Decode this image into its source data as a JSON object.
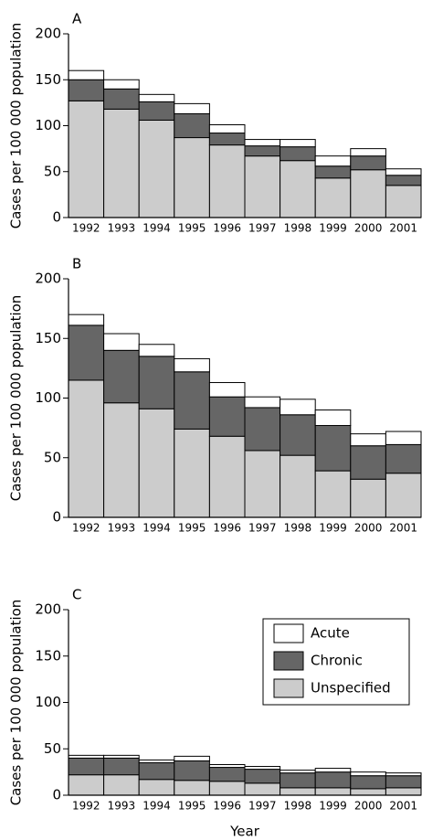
{
  "chart_data": [
    {
      "type": "bar",
      "stacked": true,
      "label": "A",
      "y_label": "Cases per 100 000 population",
      "categories": [
        "1992",
        "1993",
        "1994",
        "1995",
        "1996",
        "1997",
        "1998",
        "1999",
        "2000",
        "2001"
      ],
      "series": [
        {
          "color": "#cccccc",
          "values": [
            127,
            118,
            106,
            87,
            79,
            67,
            62,
            43,
            52,
            35
          ]
        },
        {
          "color": "#666666",
          "values": [
            23,
            22,
            20,
            26,
            13,
            11,
            15,
            13,
            15,
            11
          ]
        },
        {
          "color": "#ffffff",
          "values": [
            10,
            10,
            8,
            11,
            9,
            7,
            8,
            11,
            8,
            7
          ]
        }
      ],
      "ylim": [
        0,
        200
      ],
      "yticks": [
        0,
        50,
        100,
        150,
        200
      ],
      "legend": false
    },
    {
      "type": "bar",
      "stacked": true,
      "label": "B",
      "y_label": "Cases per 100 000 population",
      "categories": [
        "1992",
        "1993",
        "1994",
        "1995",
        "1996",
        "1997",
        "1998",
        "1999",
        "2000",
        "2001"
      ],
      "series": [
        {
          "color": "#cccccc",
          "values": [
            115,
            96,
            91,
            74,
            68,
            56,
            52,
            39,
            32,
            37
          ]
        },
        {
          "color": "#666666",
          "values": [
            46,
            44,
            44,
            48,
            33,
            36,
            34,
            38,
            28,
            24
          ]
        },
        {
          "color": "#ffffff",
          "values": [
            9,
            14,
            10,
            11,
            12,
            9,
            13,
            13,
            10,
            11
          ]
        }
      ],
      "ylim": [
        0,
        200
      ],
      "yticks": [
        0,
        50,
        100,
        150,
        200
      ],
      "legend": false
    },
    {
      "type": "bar",
      "stacked": true,
      "label": "C",
      "y_label": "Cases per 100 000 population",
      "x_label": "Year",
      "categories": [
        "1992",
        "1993",
        "1994",
        "1995",
        "1996",
        "1997",
        "1998",
        "1999",
        "2000",
        "2001"
      ],
      "series": [
        {
          "name": "Unspecified",
          "color": "#cccccc",
          "values": [
            22,
            22,
            17,
            16,
            15,
            13,
            8,
            8,
            7,
            8
          ]
        },
        {
          "name": "Chronic",
          "color": "#666666",
          "values": [
            18,
            18,
            18,
            21,
            15,
            15,
            16,
            17,
            14,
            13
          ]
        },
        {
          "name": "Acute",
          "color": "#ffffff",
          "values": [
            3,
            3,
            3,
            5,
            3,
            3,
            3,
            4,
            4,
            3
          ]
        }
      ],
      "ylim": [
        0,
        200
      ],
      "yticks": [
        0,
        50,
        100,
        150,
        200
      ],
      "legend": true,
      "legend_position": "upper right"
    }
  ]
}
